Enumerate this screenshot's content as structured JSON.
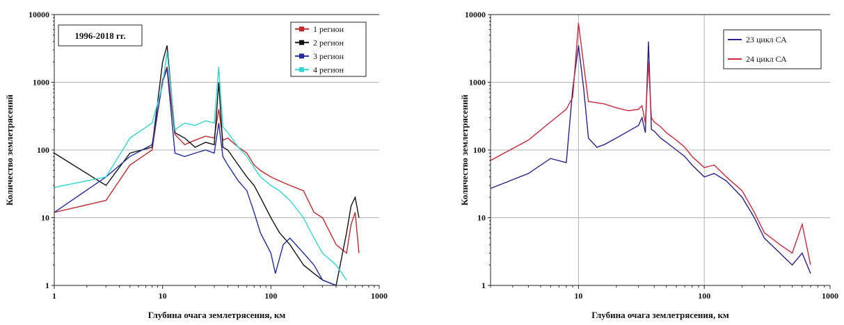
{
  "chart_data": [
    {
      "type": "line",
      "xscale": "log",
      "yscale": "log",
      "xlim": [
        1,
        1000
      ],
      "ylim": [
        1,
        10000
      ],
      "x_ticks": [
        "1",
        "10",
        "100",
        "1000"
      ],
      "y_ticks": [
        "1",
        "10",
        "100",
        "1000",
        "10000"
      ],
      "xlabel": "Глубина очага землетрясения, км",
      "ylabel": "Количество землетрясений",
      "annotation": "1996-2018 гг.",
      "legend_position": "top-right",
      "grid": "horizontal",
      "series": [
        {
          "name": "1 регион",
          "color": "#c0282a",
          "x": [
            1,
            3,
            5,
            8,
            10,
            11,
            13,
            16,
            20,
            25,
            30,
            33,
            36,
            40,
            50,
            60,
            70,
            80,
            100,
            120,
            150,
            200,
            250,
            300,
            400,
            500,
            550,
            600,
            650
          ],
          "y": [
            12,
            18,
            60,
            100,
            1100,
            1700,
            170,
            120,
            140,
            160,
            150,
            400,
            140,
            150,
            110,
            90,
            60,
            50,
            40,
            35,
            30,
            25,
            12,
            10,
            4,
            3,
            8,
            12,
            3
          ]
        },
        {
          "name": "2 регион",
          "color": "#111111",
          "x": [
            1,
            3,
            5,
            8,
            10,
            11,
            13,
            16,
            20,
            25,
            30,
            33,
            36,
            40,
            50,
            60,
            70,
            80,
            100,
            120,
            150,
            200,
            250,
            300,
            400,
            500,
            550,
            600,
            650
          ],
          "y": [
            90,
            30,
            90,
            110,
            2000,
            3500,
            180,
            150,
            110,
            130,
            120,
            1000,
            110,
            100,
            60,
            40,
            30,
            20,
            10,
            6,
            4,
            2,
            1.5,
            1.2,
            1,
            6,
            15,
            20,
            10
          ]
        },
        {
          "name": "3 регион",
          "color": "#1f2b9e",
          "x": [
            1,
            3,
            5,
            8,
            10,
            11,
            13,
            16,
            20,
            25,
            30,
            33,
            36,
            40,
            50,
            60,
            70,
            80,
            100,
            110,
            130,
            150,
            200,
            250,
            300,
            400
          ],
          "y": [
            12,
            40,
            80,
            120,
            1000,
            1600,
            90,
            80,
            90,
            100,
            90,
            250,
            80,
            60,
            35,
            25,
            12,
            6,
            3,
            1.5,
            4,
            5,
            3,
            2,
            1.2,
            1
          ]
        },
        {
          "name": "4 регион",
          "color": "#35d4d4",
          "x": [
            1,
            3,
            5,
            8,
            10,
            11,
            13,
            16,
            20,
            25,
            30,
            33,
            36,
            40,
            50,
            60,
            70,
            80,
            100,
            120,
            150,
            200,
            250,
            300,
            400,
            500
          ],
          "y": [
            28,
            40,
            150,
            250,
            900,
            2800,
            200,
            250,
            230,
            270,
            250,
            1700,
            220,
            180,
            110,
            80,
            55,
            40,
            30,
            25,
            18,
            10,
            5,
            3,
            2,
            1.2
          ]
        }
      ]
    },
    {
      "type": "line",
      "xscale": "log",
      "yscale": "log",
      "xlim": [
        2,
        1000
      ],
      "ylim": [
        1,
        10000
      ],
      "x_ticks": [
        "10",
        "100",
        "1000"
      ],
      "y_ticks": [
        "1",
        "10",
        "100",
        "1000",
        "10000"
      ],
      "xlabel": "Глубина очага землетрясения, км",
      "ylabel": "Количество землетрясений",
      "legend_position": "top-right",
      "grid": "both",
      "series": [
        {
          "name": "23 цикл СА",
          "color": "#2a1f8c",
          "x": [
            2,
            4,
            6,
            8,
            9,
            10,
            11,
            12,
            14,
            16,
            20,
            25,
            30,
            32,
            34,
            36,
            38,
            40,
            45,
            50,
            60,
            70,
            80,
            100,
            120,
            150,
            200,
            250,
            300,
            400,
            500,
            600,
            700
          ],
          "y": [
            27,
            45,
            75,
            65,
            800,
            3500,
            800,
            150,
            110,
            120,
            150,
            190,
            230,
            300,
            180,
            4000,
            200,
            190,
            150,
            130,
            100,
            80,
            60,
            40,
            45,
            35,
            20,
            10,
            5,
            3,
            2,
            3,
            1.5
          ]
        },
        {
          "name": "24 цикл СА",
          "color": "#c8283a",
          "x": [
            2,
            4,
            6,
            8,
            9,
            10,
            11,
            12,
            14,
            16,
            20,
            25,
            30,
            32,
            34,
            36,
            38,
            40,
            45,
            50,
            60,
            70,
            80,
            100,
            120,
            150,
            200,
            250,
            300,
            400,
            500,
            600,
            700
          ],
          "y": [
            70,
            140,
            260,
            400,
            600,
            7500,
            1800,
            520,
            500,
            480,
            420,
            380,
            400,
            450,
            250,
            2000,
            300,
            260,
            220,
            180,
            140,
            110,
            80,
            55,
            60,
            40,
            25,
            12,
            6,
            4,
            3,
            8,
            2
          ]
        }
      ]
    }
  ]
}
